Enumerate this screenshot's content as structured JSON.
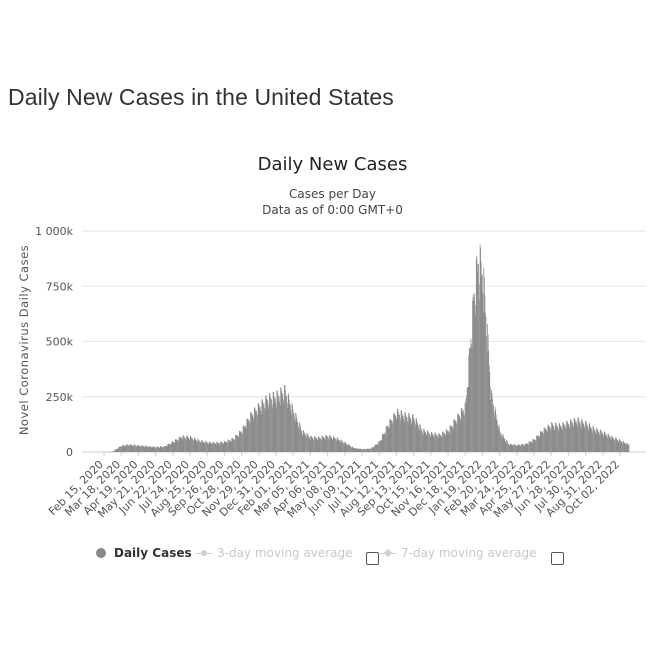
{
  "page": {
    "title": "Daily New Cases in the United States"
  },
  "chart_data": {
    "type": "bar",
    "title": "Daily New Cases",
    "subtitle_line1": "Cases per Day",
    "subtitle_line2": "Data as of 0:00 GMT+0",
    "ylabel": "Novel Coronavirus Daily Cases",
    "xlabel": "",
    "ylim": [
      0,
      1000000
    ],
    "yticks": [
      {
        "value": 0,
        "label": "0"
      },
      {
        "value": 250000,
        "label": "250k"
      },
      {
        "value": 500000,
        "label": "500k"
      },
      {
        "value": 750000,
        "label": "750k"
      },
      {
        "value": 1000000,
        "label": "1 000k"
      }
    ],
    "grid": true,
    "x_tick_labels": [
      "Feb 15, 2020",
      "Mar 18, 2020",
      "Apr 19, 2020",
      "May 21, 2020",
      "Jun 22, 2020",
      "Jul 24, 2020",
      "Aug 25, 2020",
      "Sep 26, 2020",
      "Oct 28, 2020",
      "Nov 29, 2020",
      "Dec 31, 2020",
      "Feb 01, 2021",
      "Mar 05, 2021",
      "Apr 06, 2021",
      "May 08, 2021",
      "Jun 09, 2021",
      "Jul 11, 2021",
      "Aug 12, 2021",
      "Sep 13, 2021",
      "Oct 15, 2021",
      "Nov 16, 2021",
      "Dec 18, 2021",
      "Jan 19, 2022",
      "Feb 20, 2022",
      "Mar 24, 2022",
      "Apr 25, 2022",
      "May 27, 2022",
      "Jun 28, 2022",
      "Jul 30, 2022",
      "Aug 31, 2022",
      "Oct 02, 2022"
    ],
    "series": [
      {
        "name": "Daily Cases",
        "color": "#8c8c8c",
        "dates": [
          "Feb 15, 2020",
          "Mar 01, 2020",
          "Mar 18, 2020",
          "Apr 01, 2020",
          "Apr 19, 2020",
          "May 05, 2020",
          "May 21, 2020",
          "Jun 06, 2020",
          "Jun 22, 2020",
          "Jul 08, 2020",
          "Jul 24, 2020",
          "Aug 09, 2020",
          "Aug 25, 2020",
          "Sep 10, 2020",
          "Sep 26, 2020",
          "Oct 12, 2020",
          "Oct 28, 2020",
          "Nov 13, 2020",
          "Nov 29, 2020",
          "Dec 15, 2020",
          "Dec 31, 2020",
          "Jan 16, 2021",
          "Feb 01, 2021",
          "Feb 17, 2021",
          "Mar 05, 2021",
          "Mar 21, 2021",
          "Apr 06, 2021",
          "Apr 22, 2021",
          "May 08, 2021",
          "May 24, 2021",
          "Jun 09, 2021",
          "Jun 25, 2021",
          "Jul 11, 2021",
          "Jul 27, 2021",
          "Aug 12, 2021",
          "Aug 28, 2021",
          "Sep 13, 2021",
          "Sep 29, 2021",
          "Oct 15, 2021",
          "Oct 31, 2021",
          "Nov 16, 2021",
          "Dec 02, 2021",
          "Dec 18, 2021",
          "Dec 26, 2021",
          "Jan 03, 2022",
          "Jan 11, 2022",
          "Jan 19, 2022",
          "Jan 27, 2022",
          "Feb 04, 2022",
          "Feb 20, 2022",
          "Mar 08, 2022",
          "Mar 24, 2022",
          "Apr 09, 2022",
          "Apr 25, 2022",
          "May 11, 2022",
          "May 27, 2022",
          "Jun 12, 2022",
          "Jun 28, 2022",
          "Jul 14, 2022",
          "Jul 30, 2022",
          "Aug 15, 2022",
          "Aug 31, 2022",
          "Sep 16, 2022",
          "Oct 02, 2022",
          "Oct 18, 2022"
        ],
        "values": [
          0,
          1000,
          28000,
          32000,
          28000,
          25000,
          22000,
          24000,
          45000,
          68000,
          65000,
          50000,
          42000,
          40000,
          44000,
          58000,
          95000,
          160000,
          200000,
          235000,
          245000,
          270000,
          180000,
          90000,
          65000,
          62000,
          70000,
          60000,
          40000,
          18000,
          12000,
          15000,
          45000,
          120000,
          175000,
          160000,
          150000,
          95000,
          80000,
          75000,
          95000,
          150000,
          200000,
          450000,
          700000,
          850000,
          800000,
          550000,
          250000,
          90000,
          35000,
          30000,
          35000,
          55000,
          95000,
          120000,
          115000,
          128000,
          140000,
          125000,
          100000,
          85000,
          65000,
          50000,
          32000
        ]
      },
      {
        "name": "3-day moving average",
        "values": []
      },
      {
        "name": "7-day moving average",
        "values": []
      }
    ],
    "legend": {
      "placement": "bottom",
      "items": [
        {
          "label": "Daily Cases",
          "active": true
        },
        {
          "label": "3-day moving average",
          "active": false
        },
        {
          "label": "7-day moving average",
          "active": false
        }
      ]
    }
  }
}
